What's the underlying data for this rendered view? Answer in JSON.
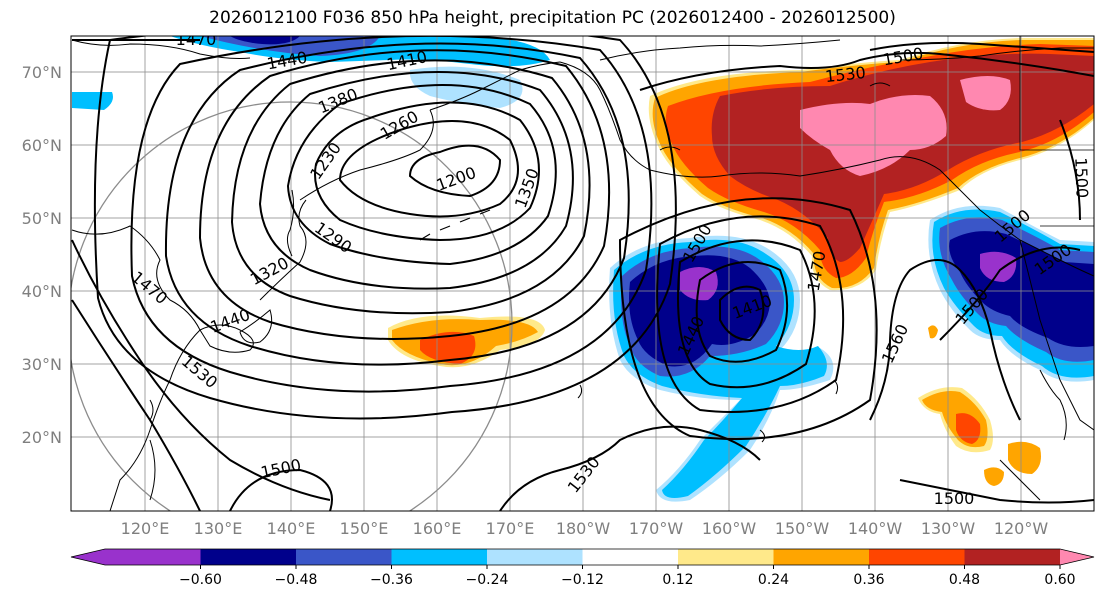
{
  "title": "2026012100 F036 850 hPa height, precipitation PC (2026012400 - 2026012500)",
  "lat_labels": [
    "70°N",
    "60°N",
    "50°N",
    "40°N",
    "30°N",
    "20°N"
  ],
  "lon_labels": [
    "120°E",
    "130°E",
    "140°E",
    "150°E",
    "160°E",
    "170°E",
    "180°W",
    "170°W",
    "160°W",
    "150°W",
    "140°W",
    "130°W",
    "120°W"
  ],
  "contour_labels": [
    {
      "id": "c1470a",
      "text": "1470"
    },
    {
      "id": "c1440a",
      "text": "1440"
    },
    {
      "id": "c1410a",
      "text": "1410"
    },
    {
      "id": "c1380",
      "text": "1380"
    },
    {
      "id": "c1260",
      "text": "1260"
    },
    {
      "id": "c1230",
      "text": "1230"
    },
    {
      "id": "c1200",
      "text": "1200"
    },
    {
      "id": "c1350",
      "text": "1350"
    },
    {
      "id": "c1290",
      "text": "1290"
    },
    {
      "id": "c1320",
      "text": "1320"
    },
    {
      "id": "c1470b",
      "text": "1470"
    },
    {
      "id": "c1440b",
      "text": "1440"
    },
    {
      "id": "c1530a",
      "text": "1530"
    },
    {
      "id": "c1500a",
      "text": "1500"
    },
    {
      "id": "c1530b",
      "text": "1530"
    },
    {
      "id": "c1530c",
      "text": "1530"
    },
    {
      "id": "c1500b",
      "text": "1500"
    },
    {
      "id": "c1500c",
      "text": "1500"
    },
    {
      "id": "c1500d",
      "text": "1500"
    },
    {
      "id": "c1440c",
      "text": "1440"
    },
    {
      "id": "c1410b",
      "text": "1410"
    },
    {
      "id": "c1470c",
      "text": "1470"
    },
    {
      "id": "c1500e",
      "text": "1500"
    },
    {
      "id": "c1560",
      "text": "1560"
    },
    {
      "id": "c1500f",
      "text": "1500"
    },
    {
      "id": "c1500g",
      "text": "1500"
    },
    {
      "id": "c1500h",
      "text": "1500"
    }
  ],
  "colorbar": {
    "colors": [
      "#9932cc",
      "#00008b",
      "#3a56c8",
      "#00bfff",
      "#aee2ff",
      "#ffffff",
      "#ffe98a",
      "#ffa500",
      "#ff4500",
      "#b22222",
      "#ff88b0"
    ],
    "labels": [
      "−0.60",
      "−0.48",
      "−0.36",
      "−0.24",
      "−0.12",
      "0.12",
      "0.24",
      "0.36",
      "0.48",
      "0.60"
    ]
  },
  "palette": {
    "purple": "#9932cc",
    "navy": "#00008b",
    "blue": "#3a56c8",
    "sky": "#00bfff",
    "light_blue": "#aee2ff",
    "light_yellow": "#ffe98a",
    "orange": "#ffa500",
    "red_orange": "#ff4500",
    "dark_red": "#b22222",
    "pink": "#ff88b0"
  }
}
